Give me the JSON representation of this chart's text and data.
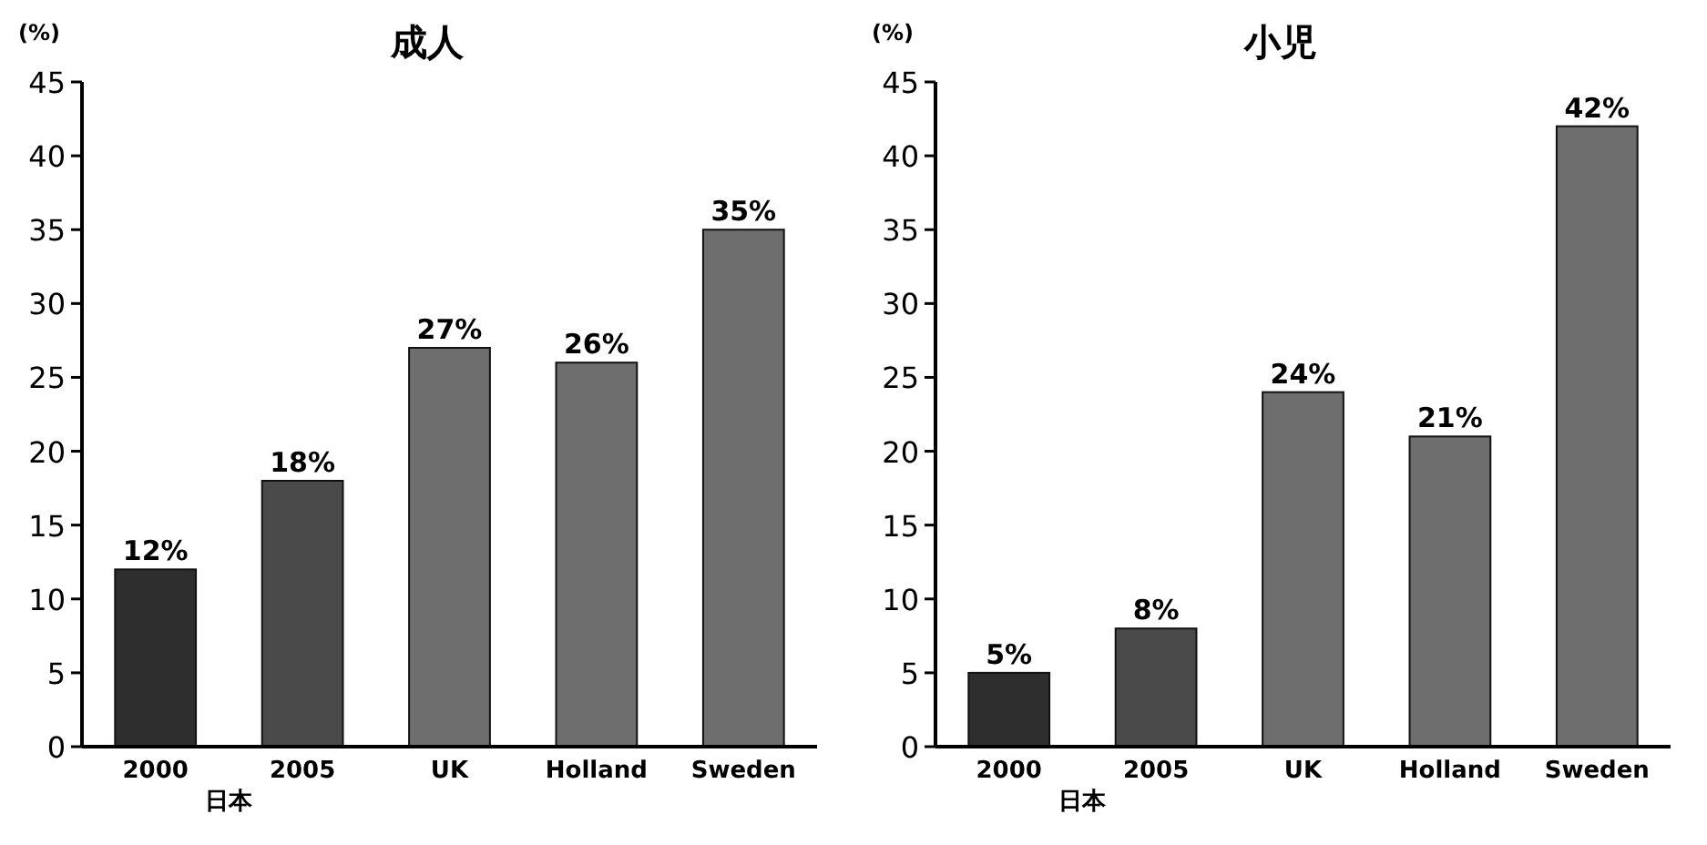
{
  "chart_data": [
    {
      "type": "bar",
      "title": "成人",
      "ylabel": "(%)",
      "categories": [
        "2000",
        "2005",
        "UK",
        "Holland",
        "Sweden"
      ],
      "values": [
        12,
        18,
        27,
        26,
        35
      ],
      "colors": [
        "#2e2e2e",
        "#4a4a4a",
        "#6e6e6e",
        "#6e6e6e",
        "#6e6e6e"
      ],
      "value_labels": [
        "12%",
        "18%",
        "27%",
        "26%",
        "35%"
      ],
      "ylim": [
        0,
        45
      ],
      "yticks": [
        0,
        5,
        10,
        15,
        20,
        25,
        30,
        35,
        40,
        45
      ],
      "annotations": [
        "日本"
      ]
    },
    {
      "type": "bar",
      "title": "小児",
      "ylabel": "(%)",
      "categories": [
        "2000",
        "2005",
        "UK",
        "Holland",
        "Sweden"
      ],
      "values": [
        5,
        8,
        24,
        21,
        42
      ],
      "colors": [
        "#2e2e2e",
        "#4a4a4a",
        "#6e6e6e",
        "#6e6e6e",
        "#6e6e6e"
      ],
      "value_labels": [
        "5%",
        "8%",
        "24%",
        "21%",
        "42%"
      ],
      "ylim": [
        0,
        45
      ],
      "yticks": [
        0,
        5,
        10,
        15,
        20,
        25,
        30,
        35,
        40,
        45
      ],
      "annotations": [
        "日本"
      ]
    }
  ]
}
